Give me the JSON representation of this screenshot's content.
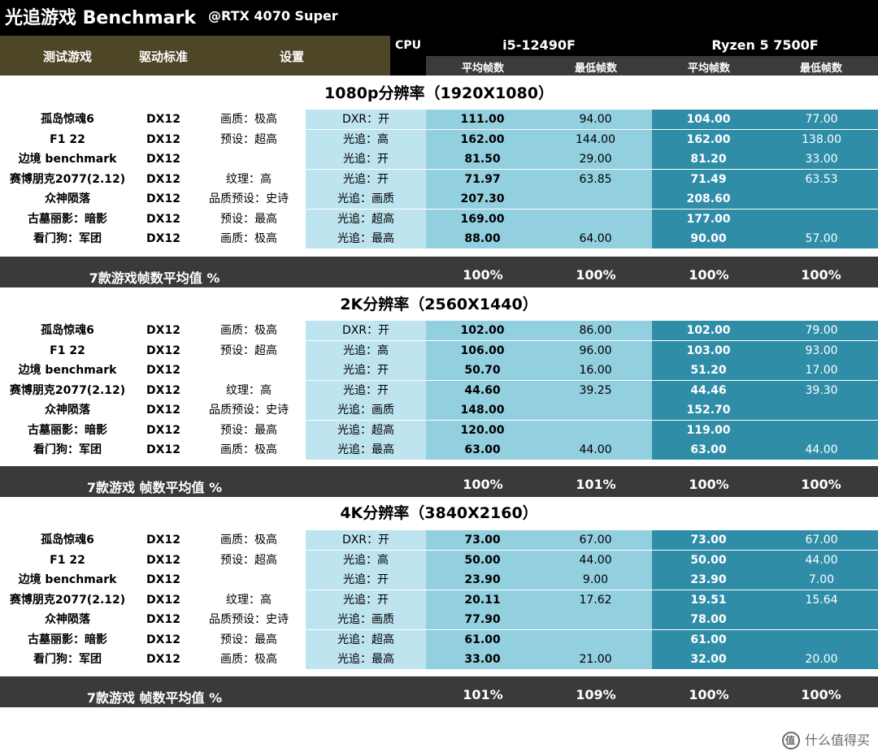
{
  "title": {
    "main": "光追游戏 Benchmark",
    "sub": "@RTX 4070 Super"
  },
  "header": {
    "col_game": "测试游戏",
    "col_api": "驱动标准",
    "col_setting": "设置",
    "col_cpu": "CPU",
    "cpu1": "i5-12490F",
    "cpu2": "Ryzen 5 7500F",
    "avg_fps": "平均帧数",
    "min_fps": "最低帧数"
  },
  "sections": [
    {
      "title": "1080p分辨率（1920X1080）",
      "rows": [
        {
          "game": "孤岛惊魂6",
          "api": "DX12",
          "quality": "画质：极高",
          "rt": "DXR：开",
          "a1": "111.00",
          "m1": "94.00",
          "a2": "104.00",
          "m2": "77.00"
        },
        {
          "game": "F1 22",
          "api": "DX12",
          "quality": "预设：超高",
          "rt": "光追：高",
          "a1": "162.00",
          "m1": "144.00",
          "a2": "162.00",
          "m2": "138.00"
        },
        {
          "game": "边境  benchmark",
          "api": "DX12",
          "quality": "",
          "rt": "光追：开",
          "a1": "81.50",
          "m1": "29.00",
          "a2": "81.20",
          "m2": "33.00"
        },
        {
          "game": "赛博朋克2077(2.12)",
          "api": "DX12",
          "quality": "纹理：高",
          "rt": "光追：开",
          "a1": "71.97",
          "m1": "63.85",
          "a2": "71.49",
          "m2": "63.53"
        },
        {
          "game": "众神陨落",
          "api": "DX12",
          "quality": "品质预设：史诗",
          "rt": "光追：画质",
          "a1": "207.30",
          "m1": "",
          "a2": "208.60",
          "m2": ""
        },
        {
          "game": "古墓丽影：暗影",
          "api": "DX12",
          "quality": "预设：最高",
          "rt": "光追：超高",
          "a1": "169.00",
          "m1": "",
          "a2": "177.00",
          "m2": ""
        },
        {
          "game": "看门狗：军团",
          "api": "DX12",
          "quality": "画质：极高",
          "rt": "光追：最高",
          "a1": "88.00",
          "m1": "64.00",
          "a2": "90.00",
          "m2": "57.00"
        }
      ],
      "summary": {
        "label": "7款游戏帧数平均值 %",
        "a1": "100%",
        "m1": "100%",
        "a2": "100%",
        "m2": "100%"
      }
    },
    {
      "title": "2K分辨率（2560X1440）",
      "rows": [
        {
          "game": "孤岛惊魂6",
          "api": "DX12",
          "quality": "画质：极高",
          "rt": "DXR：开",
          "a1": "102.00",
          "m1": "86.00",
          "a2": "102.00",
          "m2": "79.00"
        },
        {
          "game": "F1 22",
          "api": "DX12",
          "quality": "预设：超高",
          "rt": "光追：高",
          "a1": "106.00",
          "m1": "96.00",
          "a2": "103.00",
          "m2": "93.00"
        },
        {
          "game": "边境  benchmark",
          "api": "DX12",
          "quality": "",
          "rt": "光追：开",
          "a1": "50.70",
          "m1": "16.00",
          "a2": "51.20",
          "m2": "17.00"
        },
        {
          "game": "赛博朋克2077(2.12)",
          "api": "DX12",
          "quality": "纹理：高",
          "rt": "光追：开",
          "a1": "44.60",
          "m1": "39.25",
          "a2": "44.46",
          "m2": "39.30"
        },
        {
          "game": "众神陨落",
          "api": "DX12",
          "quality": "品质预设：史诗",
          "rt": "光追：画质",
          "a1": "148.00",
          "m1": "",
          "a2": "152.70",
          "m2": ""
        },
        {
          "game": "古墓丽影：暗影",
          "api": "DX12",
          "quality": "预设：最高",
          "rt": "光追：超高",
          "a1": "120.00",
          "m1": "",
          "a2": "119.00",
          "m2": ""
        },
        {
          "game": "看门狗：军团",
          "api": "DX12",
          "quality": "画质：极高",
          "rt": "光追：最高",
          "a1": "63.00",
          "m1": "44.00",
          "a2": "63.00",
          "m2": "44.00"
        }
      ],
      "summary": {
        "label": "7款游戏 帧数平均值 %",
        "a1": "100%",
        "m1": "101%",
        "a2": "100%",
        "m2": "100%"
      }
    },
    {
      "title": "4K分辨率（3840X2160）",
      "rows": [
        {
          "game": "孤岛惊魂6",
          "api": "DX12",
          "quality": "画质：极高",
          "rt": "DXR：开",
          "a1": "73.00",
          "m1": "67.00",
          "a2": "73.00",
          "m2": "67.00"
        },
        {
          "game": "F1 22",
          "api": "DX12",
          "quality": "预设：超高",
          "rt": "光追：高",
          "a1": "50.00",
          "m1": "44.00",
          "a2": "50.00",
          "m2": "44.00"
        },
        {
          "game": "边境  benchmark",
          "api": "DX12",
          "quality": "",
          "rt": "光追：开",
          "a1": "23.90",
          "m1": "9.00",
          "a2": "23.90",
          "m2": "7.00"
        },
        {
          "game": "赛博朋克2077(2.12)",
          "api": "DX12",
          "quality": "纹理：高",
          "rt": "光追：开",
          "a1": "20.11",
          "m1": "17.62",
          "a2": "19.51",
          "m2": "15.64"
        },
        {
          "game": "众神陨落",
          "api": "DX12",
          "quality": "品质预设：史诗",
          "rt": "光追：画质",
          "a1": "77.90",
          "m1": "",
          "a2": "78.00",
          "m2": ""
        },
        {
          "game": "古墓丽影：暗影",
          "api": "DX12",
          "quality": "预设：最高",
          "rt": "光追：超高",
          "a1": "61.00",
          "m1": "",
          "a2": "61.00",
          "m2": ""
        },
        {
          "game": "看门狗：军团",
          "api": "DX12",
          "quality": "画质：极高",
          "rt": "光追：最高",
          "a1": "33.00",
          "m1": "21.00",
          "a2": "32.00",
          "m2": "20.00"
        }
      ],
      "summary": {
        "label": "7款游戏 帧数平均值 %",
        "a1": "101%",
        "m1": "109%",
        "a2": "100%",
        "m2": "100%"
      }
    }
  ],
  "watermark": {
    "text": "什么值得买"
  },
  "colors": {
    "title_bg": "#000000",
    "header_left_bg": "#4d4627",
    "rt_col_bg": "#bde4ef",
    "cpu1_bg": "#92cfdf",
    "cpu2_bg": "#2f8da8",
    "summary_bg": "#3a3a3a"
  }
}
